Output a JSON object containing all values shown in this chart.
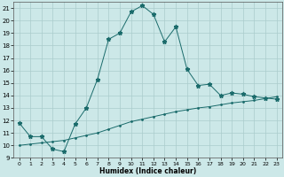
{
  "xlabel": "Humidex (Indice chaleur)",
  "bg_color": "#cce8e8",
  "grid_color": "#aacccc",
  "line_color": "#1a6b6b",
  "xlim": [
    -0.5,
    23.5
  ],
  "ylim": [
    9,
    21.5
  ],
  "yticks": [
    9,
    10,
    11,
    12,
    13,
    14,
    15,
    16,
    17,
    18,
    19,
    20,
    21
  ],
  "xticks": [
    0,
    1,
    2,
    3,
    4,
    5,
    6,
    7,
    8,
    9,
    10,
    11,
    12,
    13,
    14,
    15,
    16,
    17,
    18,
    19,
    20,
    21,
    22,
    23
  ],
  "series1_x": [
    0,
    1,
    2,
    3,
    4,
    5,
    6,
    7,
    8,
    9,
    10,
    11,
    12,
    13,
    14,
    15,
    16,
    17,
    18,
    19,
    20,
    21,
    22,
    23
  ],
  "series1_y": [
    11.8,
    10.7,
    10.7,
    9.7,
    9.5,
    11.7,
    13.0,
    15.3,
    18.5,
    19.0,
    20.7,
    21.2,
    20.5,
    18.3,
    19.5,
    16.1,
    14.8,
    14.9,
    14.0,
    14.2,
    14.1,
    13.9,
    13.8,
    13.7
  ],
  "series2_x": [
    0,
    1,
    2,
    3,
    4,
    5,
    6,
    7,
    8,
    9,
    10,
    11,
    12,
    13,
    14,
    15,
    16,
    17,
    18,
    19,
    20,
    21,
    22,
    23
  ],
  "series2_y": [
    10.0,
    10.1,
    10.2,
    10.3,
    10.4,
    10.6,
    10.8,
    11.0,
    11.3,
    11.6,
    11.9,
    12.1,
    12.3,
    12.5,
    12.7,
    12.85,
    13.0,
    13.1,
    13.25,
    13.4,
    13.5,
    13.6,
    13.75,
    13.9
  ]
}
